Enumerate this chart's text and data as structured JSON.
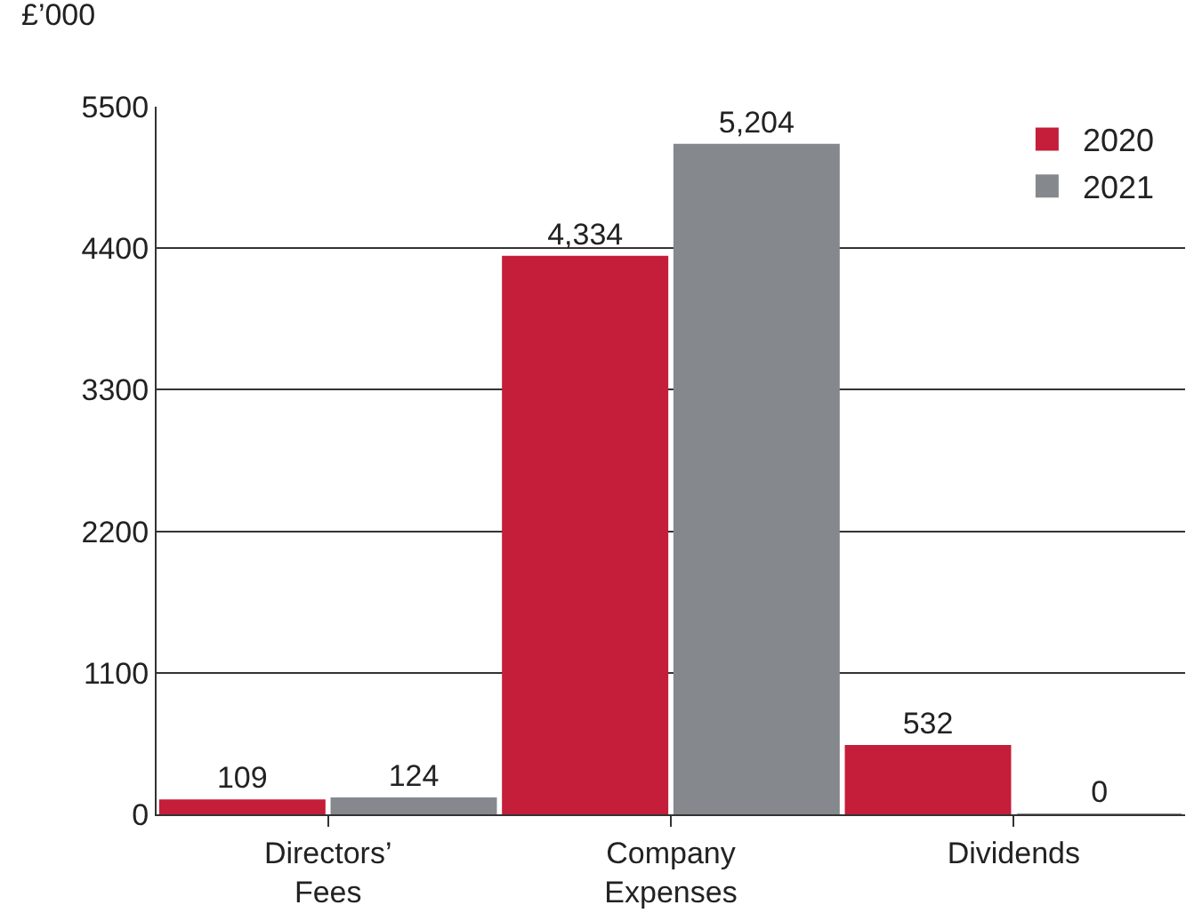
{
  "chart_data": {
    "type": "bar",
    "ylabel": "£’000",
    "categories": [
      "Directors’ Fees",
      "Company Expenses",
      "Dividends"
    ],
    "series": [
      {
        "name": "2020",
        "color": "#c41e3a",
        "values": [
          109,
          4334,
          532
        ],
        "value_labels": [
          "109",
          "4,334",
          "532"
        ]
      },
      {
        "name": "2021",
        "color": "#85898d",
        "values": [
          124,
          5204,
          0
        ],
        "value_labels": [
          "124",
          "5,204",
          "0"
        ]
      }
    ],
    "ylim": [
      0,
      5500
    ],
    "yticks": [
      0,
      1100,
      2200,
      3300,
      4400,
      5500
    ],
    "grid": "y",
    "legend": "top right"
  }
}
